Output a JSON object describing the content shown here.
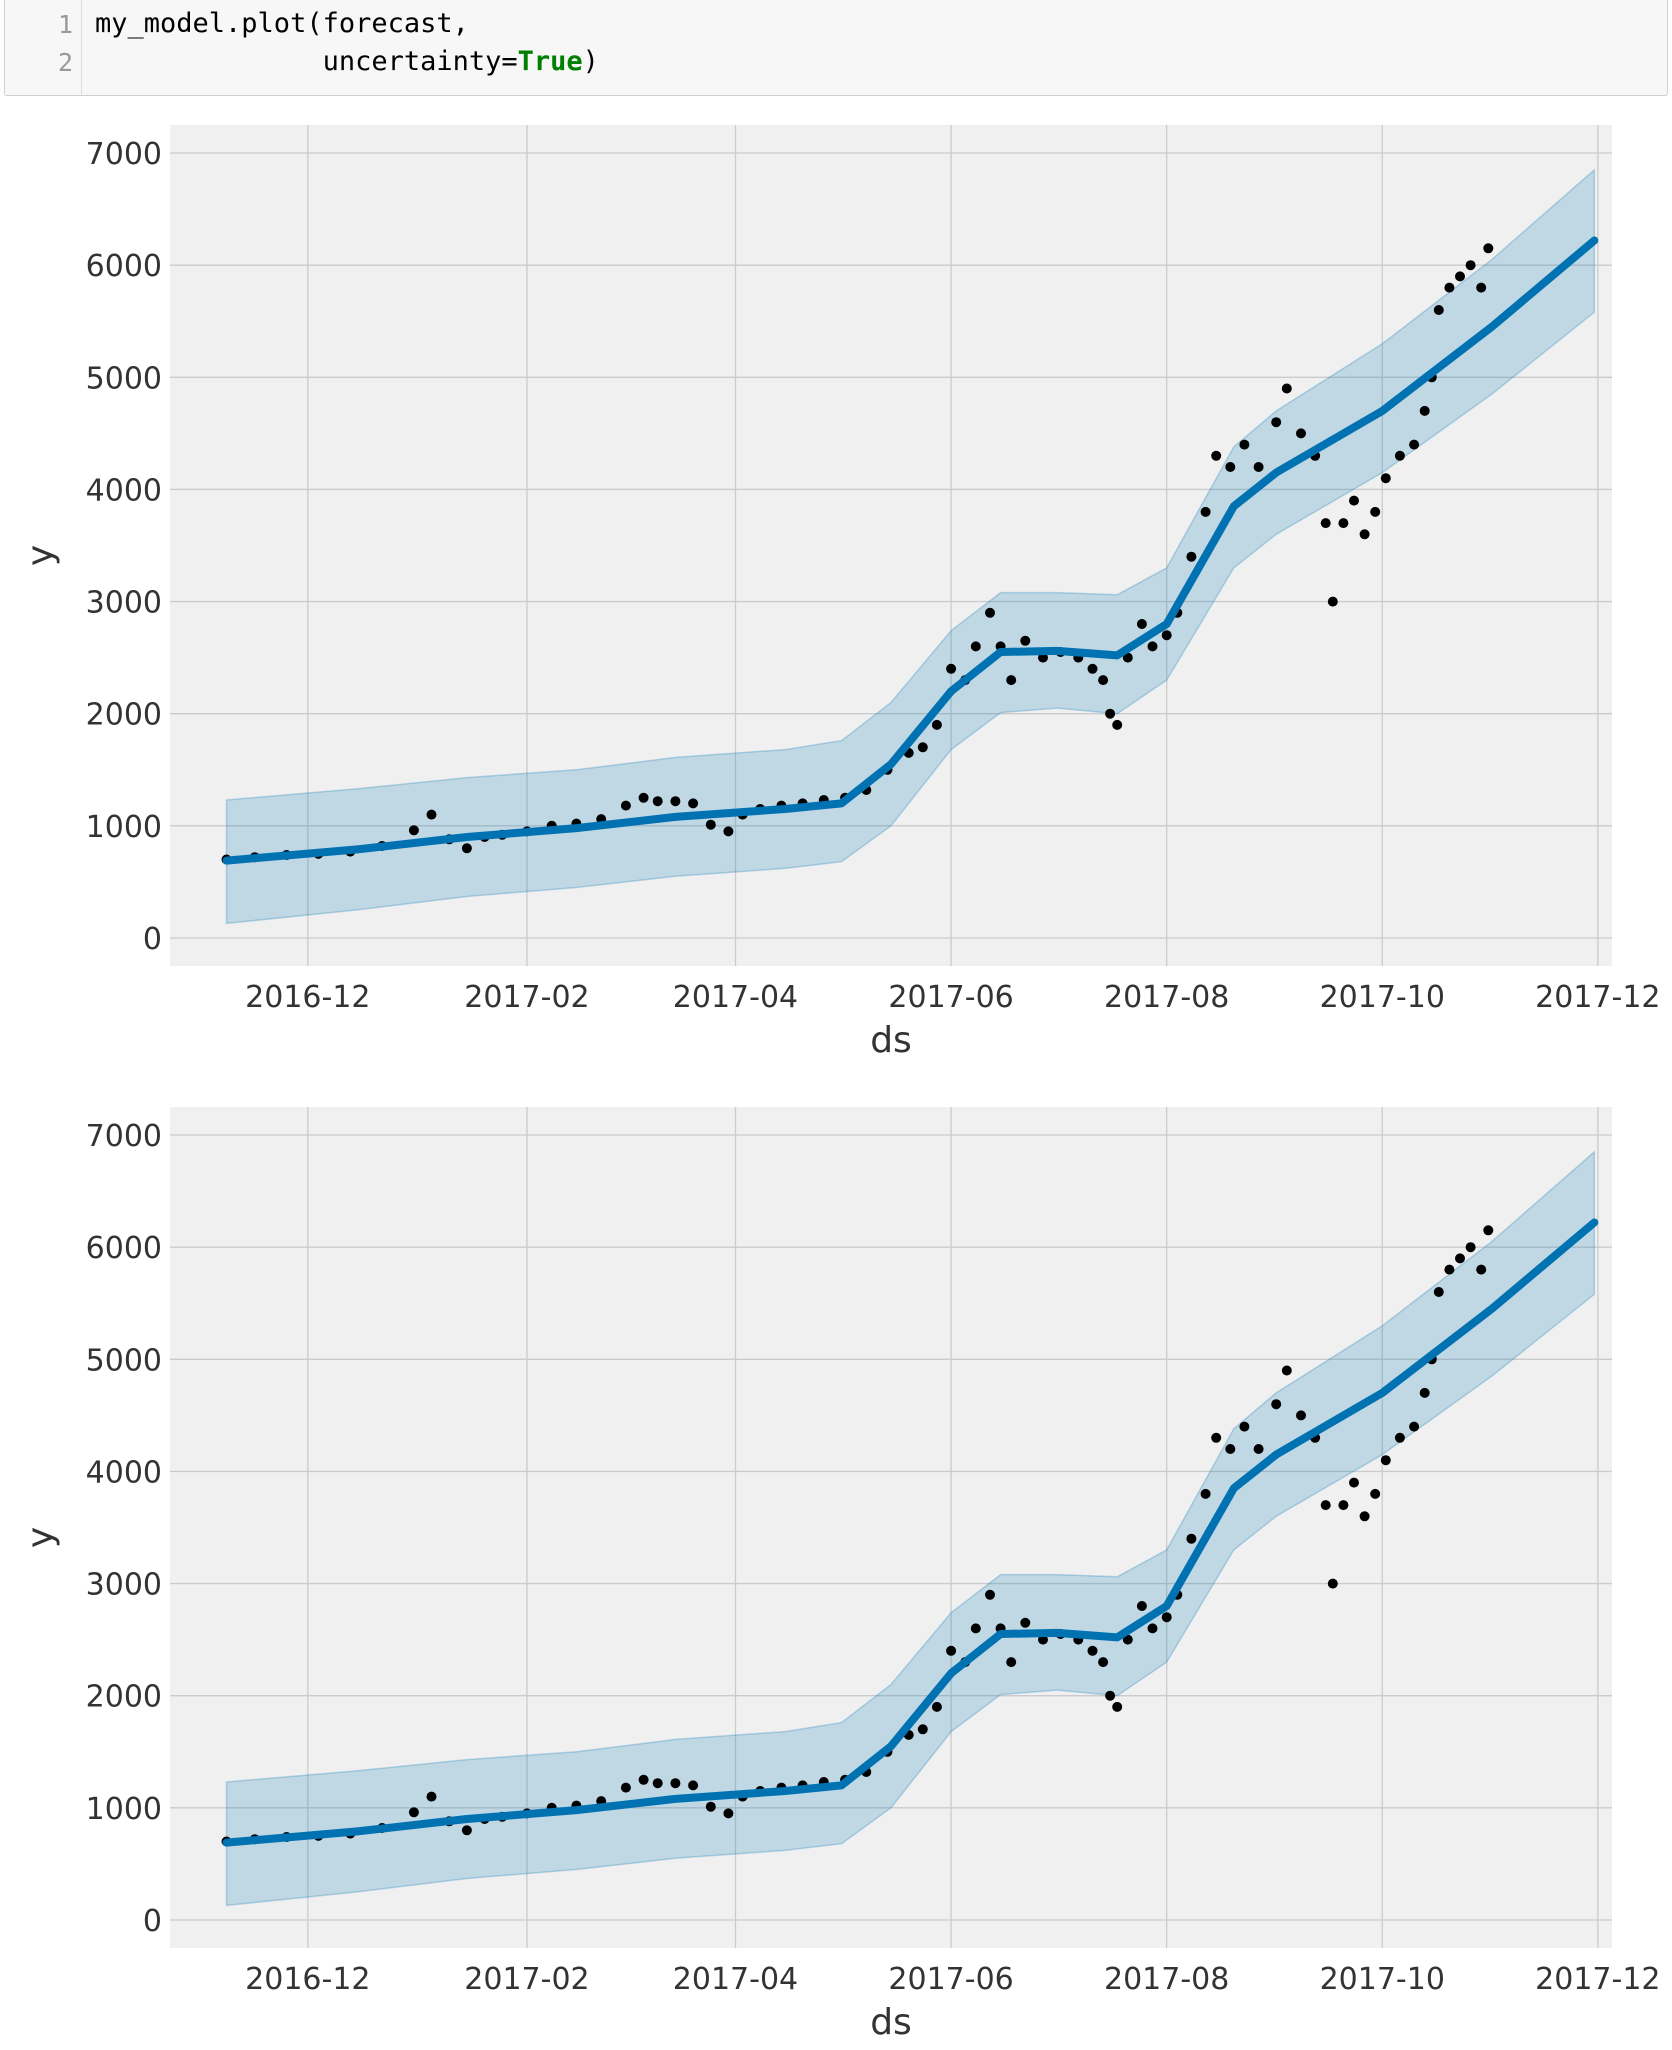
{
  "code_cell": {
    "line_numbers": [
      "1",
      "2"
    ],
    "line1": "my_model.plot(forecast,",
    "line2_prefix": "              uncertainty=",
    "line2_keyword": "True",
    "line2_suffix": ")"
  },
  "colors": {
    "plot_bg": "#f0f0f0",
    "grid": "#cbcbcb",
    "band": "#0072B2",
    "trend": "#0072B2",
    "points": "#000000",
    "keyword": "#008000"
  },
  "chart_data": [
    {
      "type": "line",
      "xlabel": "ds",
      "ylabel": "y",
      "ylim": [
        -250,
        7250
      ],
      "xlim": [
        "2016-10-23",
        "2017-12-05"
      ],
      "x_ticks": [
        "2016-12",
        "2017-02",
        "2017-04",
        "2017-06",
        "2017-08",
        "2017-10",
        "2017-12"
      ],
      "y_ticks": [
        "0",
        "1000",
        "2000",
        "3000",
        "4000",
        "5000",
        "6000",
        "7000"
      ],
      "grid": true,
      "series": [
        {
          "kind": "trend_line",
          "x": [
            "2016-11-08",
            "2016-12-15",
            "2017-01-15",
            "2017-02-15",
            "2017-03-15",
            "2017-04-15",
            "2017-05-01",
            "2017-05-15",
            "2017-06-01",
            "2017-06-15",
            "2017-07-01",
            "2017-07-18",
            "2017-08-01",
            "2017-08-20",
            "2017-09-01",
            "2017-10-01",
            "2017-11-01",
            "2017-11-30"
          ],
          "y": [
            690,
            790,
            900,
            980,
            1080,
            1150,
            1200,
            1550,
            2200,
            2550,
            2560,
            2520,
            2800,
            3850,
            4150,
            4700,
            5450,
            6220
          ]
        },
        {
          "kind": "uncertainty_band",
          "x": [
            "2016-11-08",
            "2016-12-15",
            "2017-01-15",
            "2017-02-15",
            "2017-03-15",
            "2017-04-15",
            "2017-05-01",
            "2017-05-15",
            "2017-06-01",
            "2017-06-15",
            "2017-07-01",
            "2017-07-18",
            "2017-08-01",
            "2017-08-20",
            "2017-09-01",
            "2017-10-01",
            "2017-11-01",
            "2017-11-30"
          ],
          "lower": [
            130,
            250,
            370,
            450,
            550,
            620,
            680,
            1000,
            1680,
            2010,
            2050,
            2000,
            2300,
            3300,
            3600,
            4150,
            4850,
            5580
          ],
          "upper": [
            1230,
            1330,
            1430,
            1500,
            1610,
            1680,
            1760,
            2100,
            2740,
            3080,
            3080,
            3060,
            3300,
            4380,
            4700,
            5300,
            6050,
            6850
          ]
        },
        {
          "kind": "observed_points",
          "x": [
            "2016-11-08",
            "2016-11-16",
            "2016-11-25",
            "2016-12-04",
            "2016-12-13",
            "2016-12-22",
            "2016-12-31",
            "2017-01-05",
            "2017-01-10",
            "2017-01-15",
            "2017-01-20",
            "2017-01-25",
            "2017-02-01",
            "2017-02-08",
            "2017-02-15",
            "2017-02-22",
            "2017-03-01",
            "2017-03-06",
            "2017-03-10",
            "2017-03-15",
            "2017-03-20",
            "2017-03-25",
            "2017-03-30",
            "2017-04-03",
            "2017-04-08",
            "2017-04-14",
            "2017-04-20",
            "2017-04-26",
            "2017-05-02",
            "2017-05-08",
            "2017-05-14",
            "2017-05-20",
            "2017-05-24",
            "2017-05-28",
            "2017-06-01",
            "2017-06-05",
            "2017-06-08",
            "2017-06-12",
            "2017-06-15",
            "2017-06-18",
            "2017-06-22",
            "2017-06-27",
            "2017-07-02",
            "2017-07-07",
            "2017-07-11",
            "2017-07-14",
            "2017-07-16",
            "2017-07-18",
            "2017-07-21",
            "2017-07-25",
            "2017-07-28",
            "2017-08-01",
            "2017-08-04",
            "2017-08-08",
            "2017-08-12",
            "2017-08-15",
            "2017-08-19",
            "2017-08-23",
            "2017-08-27",
            "2017-09-01",
            "2017-09-04",
            "2017-09-08",
            "2017-09-12",
            "2017-09-15",
            "2017-09-17",
            "2017-09-20",
            "2017-09-23",
            "2017-09-26",
            "2017-09-29",
            "2017-10-02",
            "2017-10-06",
            "2017-10-10",
            "2017-10-13",
            "2017-10-15",
            "2017-10-17",
            "2017-10-20",
            "2017-10-23",
            "2017-10-26",
            "2017-10-29",
            "2017-10-31"
          ],
          "y": [
            700,
            720,
            740,
            750,
            770,
            820,
            960,
            1100,
            880,
            800,
            900,
            920,
            950,
            1000,
            1020,
            1060,
            1180,
            1250,
            1220,
            1220,
            1200,
            1010,
            950,
            1100,
            1150,
            1180,
            1200,
            1230,
            1250,
            1320,
            1500,
            1650,
            1700,
            1900,
            2400,
            2300,
            2600,
            2900,
            2600,
            2300,
            2650,
            2500,
            2550,
            2500,
            2400,
            2300,
            2000,
            1900,
            2500,
            2800,
            2600,
            2700,
            2900,
            3400,
            3800,
            4300,
            4200,
            4400,
            4200,
            4600,
            4900,
            4500,
            4300,
            3700,
            3000,
            3700,
            3900,
            3600,
            3800,
            4100,
            4300,
            4400,
            4700,
            5000,
            5600,
            5800,
            5900,
            6000,
            5800,
            6150
          ]
        }
      ]
    },
    {
      "type": "line",
      "xlabel": "ds",
      "ylabel": "y",
      "ylim": [
        -250,
        7250
      ],
      "xlim": [
        "2016-10-23",
        "2017-12-05"
      ],
      "x_ticks": [
        "2016-12",
        "2017-02",
        "2017-04",
        "2017-06",
        "2017-08",
        "2017-10",
        "2017-12"
      ],
      "y_ticks": [
        "0",
        "1000",
        "2000",
        "3000",
        "4000",
        "5000",
        "6000",
        "7000"
      ],
      "grid": true,
      "series": [
        {
          "kind": "trend_line",
          "x": [
            "2016-11-08",
            "2016-12-15",
            "2017-01-15",
            "2017-02-15",
            "2017-03-15",
            "2017-04-15",
            "2017-05-01",
            "2017-05-15",
            "2017-06-01",
            "2017-06-15",
            "2017-07-01",
            "2017-07-18",
            "2017-08-01",
            "2017-08-20",
            "2017-09-01",
            "2017-10-01",
            "2017-11-01",
            "2017-11-30"
          ],
          "y": [
            690,
            790,
            900,
            980,
            1080,
            1150,
            1200,
            1550,
            2200,
            2550,
            2560,
            2520,
            2800,
            3850,
            4150,
            4700,
            5450,
            6220
          ]
        },
        {
          "kind": "uncertainty_band",
          "x": [
            "2016-11-08",
            "2016-12-15",
            "2017-01-15",
            "2017-02-15",
            "2017-03-15",
            "2017-04-15",
            "2017-05-01",
            "2017-05-15",
            "2017-06-01",
            "2017-06-15",
            "2017-07-01",
            "2017-07-18",
            "2017-08-01",
            "2017-08-20",
            "2017-09-01",
            "2017-10-01",
            "2017-11-01",
            "2017-11-30"
          ],
          "lower": [
            130,
            250,
            370,
            450,
            550,
            620,
            680,
            1000,
            1680,
            2010,
            2050,
            2000,
            2300,
            3300,
            3600,
            4150,
            4850,
            5580
          ],
          "upper": [
            1230,
            1330,
            1430,
            1500,
            1610,
            1680,
            1760,
            2100,
            2740,
            3080,
            3080,
            3060,
            3300,
            4380,
            4700,
            5300,
            6050,
            6850
          ]
        },
        {
          "kind": "observed_points",
          "x": [
            "2016-11-08",
            "2016-11-16",
            "2016-11-25",
            "2016-12-04",
            "2016-12-13",
            "2016-12-22",
            "2016-12-31",
            "2017-01-05",
            "2017-01-10",
            "2017-01-15",
            "2017-01-20",
            "2017-01-25",
            "2017-02-01",
            "2017-02-08",
            "2017-02-15",
            "2017-02-22",
            "2017-03-01",
            "2017-03-06",
            "2017-03-10",
            "2017-03-15",
            "2017-03-20",
            "2017-03-25",
            "2017-03-30",
            "2017-04-03",
            "2017-04-08",
            "2017-04-14",
            "2017-04-20",
            "2017-04-26",
            "2017-05-02",
            "2017-05-08",
            "2017-05-14",
            "2017-05-20",
            "2017-05-24",
            "2017-05-28",
            "2017-06-01",
            "2017-06-05",
            "2017-06-08",
            "2017-06-12",
            "2017-06-15",
            "2017-06-18",
            "2017-06-22",
            "2017-06-27",
            "2017-07-02",
            "2017-07-07",
            "2017-07-11",
            "2017-07-14",
            "2017-07-16",
            "2017-07-18",
            "2017-07-21",
            "2017-07-25",
            "2017-07-28",
            "2017-08-01",
            "2017-08-04",
            "2017-08-08",
            "2017-08-12",
            "2017-08-15",
            "2017-08-19",
            "2017-08-23",
            "2017-08-27",
            "2017-09-01",
            "2017-09-04",
            "2017-09-08",
            "2017-09-12",
            "2017-09-15",
            "2017-09-17",
            "2017-09-20",
            "2017-09-23",
            "2017-09-26",
            "2017-09-29",
            "2017-10-02",
            "2017-10-06",
            "2017-10-10",
            "2017-10-13",
            "2017-10-15",
            "2017-10-17",
            "2017-10-20",
            "2017-10-23",
            "2017-10-26",
            "2017-10-29",
            "2017-10-31"
          ],
          "y": [
            700,
            720,
            740,
            750,
            770,
            820,
            960,
            1100,
            880,
            800,
            900,
            920,
            950,
            1000,
            1020,
            1060,
            1180,
            1250,
            1220,
            1220,
            1200,
            1010,
            950,
            1100,
            1150,
            1180,
            1200,
            1230,
            1250,
            1320,
            1500,
            1650,
            1700,
            1900,
            2400,
            2300,
            2600,
            2900,
            2600,
            2300,
            2650,
            2500,
            2550,
            2500,
            2400,
            2300,
            2000,
            1900,
            2500,
            2800,
            2600,
            2700,
            2900,
            3400,
            3800,
            4300,
            4200,
            4400,
            4200,
            4600,
            4900,
            4500,
            4300,
            3700,
            3000,
            3700,
            3900,
            3600,
            3800,
            4100,
            4300,
            4400,
            4700,
            5000,
            5600,
            5800,
            5900,
            6000,
            5800,
            6150
          ]
        }
      ]
    }
  ]
}
